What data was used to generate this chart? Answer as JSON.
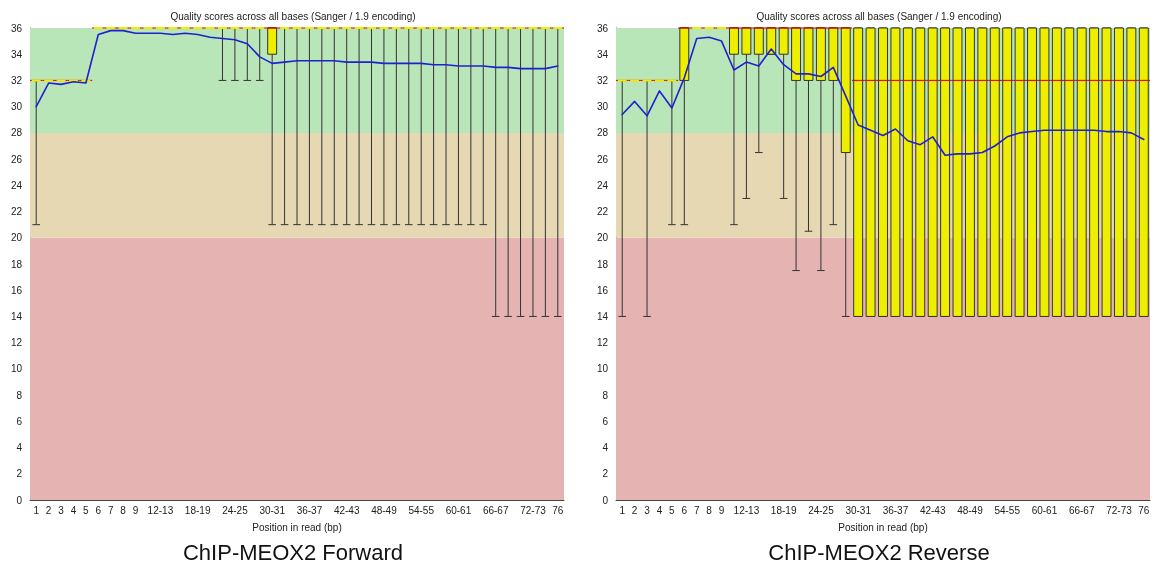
{
  "chart_data": [
    {
      "type": "box",
      "title": "Quality scores across all bases (Sanger / 1.9 encoding)",
      "xlabel": "Position in read (bp)",
      "annotations": [
        "ChIP-MEOX2 Forward"
      ],
      "categories": [
        "1",
        "2",
        "3",
        "4",
        "5",
        "6",
        "7",
        "8",
        "9",
        null,
        "12-13",
        null,
        null,
        "18-19",
        null,
        null,
        "24-25",
        null,
        null,
        "30-31",
        null,
        null,
        "36-37",
        null,
        null,
        "42-43",
        null,
        null,
        "48-49",
        null,
        null,
        "54-55",
        null,
        null,
        "60-61",
        null,
        null,
        "66-67",
        null,
        null,
        "72-73",
        null,
        "76"
      ],
      "ylim": [
        0,
        36
      ],
      "yticks": [
        0,
        2,
        4,
        6,
        8,
        10,
        12,
        14,
        16,
        18,
        20,
        22,
        24,
        26,
        28,
        30,
        32,
        34,
        36
      ],
      "grid": false,
      "bands": [
        {
          "axis": "y",
          "from": 0,
          "to": 20,
          "color": "#e6b3b3"
        },
        {
          "axis": "y",
          "from": 20,
          "to": 28,
          "color": "#e6d8b3"
        },
        {
          "axis": "y",
          "from": 28,
          "to": 36,
          "color": "#b8e6b8"
        }
      ],
      "series": [
        {
          "type": "box",
          "color": "#eeee00",
          "boxes": [
            {
              "low": 21,
              "q1": 32,
              "median": 32,
              "q3": 32,
              "high": 32
            },
            {
              "low": 32,
              "q1": 32,
              "median": 32,
              "q3": 32,
              "high": 32
            },
            {
              "low": 32,
              "q1": 32,
              "median": 32,
              "q3": 32,
              "high": 32
            },
            {
              "low": 32,
              "q1": 32,
              "median": 32,
              "q3": 32,
              "high": 32
            },
            {
              "low": 32,
              "q1": 32,
              "median": 32,
              "q3": 32,
              "high": 32
            },
            {
              "low": 36,
              "q1": 36,
              "median": 36,
              "q3": 36,
              "high": 36
            },
            {
              "low": 36,
              "q1": 36,
              "median": 36,
              "q3": 36,
              "high": 36
            },
            {
              "low": 36,
              "q1": 36,
              "median": 36,
              "q3": 36,
              "high": 36
            },
            {
              "low": 36,
              "q1": 36,
              "median": 36,
              "q3": 36,
              "high": 36
            },
            {
              "low": 36,
              "q1": 36,
              "median": 36,
              "q3": 36,
              "high": 36
            },
            {
              "low": 36,
              "q1": 36,
              "median": 36,
              "q3": 36,
              "high": 36
            },
            {
              "low": 36,
              "q1": 36,
              "median": 36,
              "q3": 36,
              "high": 36
            },
            {
              "low": 36,
              "q1": 36,
              "median": 36,
              "q3": 36,
              "high": 36
            },
            {
              "low": 36,
              "q1": 36,
              "median": 36,
              "q3": 36,
              "high": 36
            },
            {
              "low": 36,
              "q1": 36,
              "median": 36,
              "q3": 36,
              "high": 36
            },
            {
              "low": 32,
              "q1": 36,
              "median": 36,
              "q3": 36,
              "high": 36
            },
            {
              "low": 32,
              "q1": 36,
              "median": 36,
              "q3": 36,
              "high": 36
            },
            {
              "low": 32,
              "q1": 36,
              "median": 36,
              "q3": 36,
              "high": 36
            },
            {
              "low": 32,
              "q1": 36,
              "median": 36,
              "q3": 36,
              "high": 36
            },
            {
              "low": 21,
              "q1": 34,
              "median": 36,
              "q3": 36,
              "high": 36
            },
            {
              "low": 21,
              "q1": 36,
              "median": 36,
              "q3": 36,
              "high": 36
            },
            {
              "low": 21,
              "q1": 36,
              "median": 36,
              "q3": 36,
              "high": 36
            },
            {
              "low": 21,
              "q1": 36,
              "median": 36,
              "q3": 36,
              "high": 36
            },
            {
              "low": 21,
              "q1": 36,
              "median": 36,
              "q3": 36,
              "high": 36
            },
            {
              "low": 21,
              "q1": 36,
              "median": 36,
              "q3": 36,
              "high": 36
            },
            {
              "low": 21,
              "q1": 36,
              "median": 36,
              "q3": 36,
              "high": 36
            },
            {
              "low": 21,
              "q1": 36,
              "median": 36,
              "q3": 36,
              "high": 36
            },
            {
              "low": 21,
              "q1": 36,
              "median": 36,
              "q3": 36,
              "high": 36
            },
            {
              "low": 21,
              "q1": 36,
              "median": 36,
              "q3": 36,
              "high": 36
            },
            {
              "low": 21,
              "q1": 36,
              "median": 36,
              "q3": 36,
              "high": 36
            },
            {
              "low": 21,
              "q1": 36,
              "median": 36,
              "q3": 36,
              "high": 36
            },
            {
              "low": 21,
              "q1": 36,
              "median": 36,
              "q3": 36,
              "high": 36
            },
            {
              "low": 21,
              "q1": 36,
              "median": 36,
              "q3": 36,
              "high": 36
            },
            {
              "low": 21,
              "q1": 36,
              "median": 36,
              "q3": 36,
              "high": 36
            },
            {
              "low": 21,
              "q1": 36,
              "median": 36,
              "q3": 36,
              "high": 36
            },
            {
              "low": 21,
              "q1": 36,
              "median": 36,
              "q3": 36,
              "high": 36
            },
            {
              "low": 21,
              "q1": 36,
              "median": 36,
              "q3": 36,
              "high": 36
            },
            {
              "low": 14,
              "q1": 36,
              "median": 36,
              "q3": 36,
              "high": 36
            },
            {
              "low": 14,
              "q1": 36,
              "median": 36,
              "q3": 36,
              "high": 36
            },
            {
              "low": 14,
              "q1": 36,
              "median": 36,
              "q3": 36,
              "high": 36
            },
            {
              "low": 14,
              "q1": 36,
              "median": 36,
              "q3": 36,
              "high": 36
            },
            {
              "low": 14,
              "q1": 36,
              "median": 36,
              "q3": 36,
              "high": 36
            },
            {
              "low": 14,
              "q1": 36,
              "median": 36,
              "q3": 36,
              "high": 36
            }
          ]
        },
        {
          "type": "line",
          "color": "#2020d0",
          "marker": "none",
          "line_style": "solid",
          "values": [
            30.0,
            31.8,
            31.7,
            31.9,
            31.8,
            35.5,
            35.8,
            35.8,
            35.6,
            35.6,
            35.6,
            35.5,
            35.6,
            35.5,
            35.3,
            35.2,
            35.1,
            34.8,
            33.8,
            33.3,
            33.4,
            33.5,
            33.5,
            33.5,
            33.5,
            33.4,
            33.4,
            33.4,
            33.3,
            33.3,
            33.3,
            33.3,
            33.2,
            33.2,
            33.1,
            33.1,
            33.1,
            33.0,
            33.0,
            32.9,
            32.9,
            32.9,
            33.1
          ]
        }
      ]
    },
    {
      "type": "box",
      "title": "Quality scores across all bases (Sanger / 1.9 encoding)",
      "xlabel": "Position in read (bp)",
      "annotations": [
        "ChIP-MEOX2 Reverse"
      ],
      "categories": [
        "1",
        "2",
        "3",
        "4",
        "5",
        "6",
        "7",
        "8",
        "9",
        null,
        "12-13",
        null,
        null,
        "18-19",
        null,
        null,
        "24-25",
        null,
        null,
        "30-31",
        null,
        null,
        "36-37",
        null,
        null,
        "42-43",
        null,
        null,
        "48-49",
        null,
        null,
        "54-55",
        null,
        null,
        "60-61",
        null,
        null,
        "66-67",
        null,
        null,
        "72-73",
        null,
        "76"
      ],
      "ylim": [
        0,
        36
      ],
      "yticks": [
        0,
        2,
        4,
        6,
        8,
        10,
        12,
        14,
        16,
        18,
        20,
        22,
        24,
        26,
        28,
        30,
        32,
        34,
        36
      ],
      "grid": false,
      "bands": [
        {
          "axis": "y",
          "from": 0,
          "to": 20,
          "color": "#e6b3b3"
        },
        {
          "axis": "y",
          "from": 20,
          "to": 28,
          "color": "#e6d8b3"
        },
        {
          "axis": "y",
          "from": 28,
          "to": 36,
          "color": "#b8e6b8"
        }
      ],
      "series": [
        {
          "type": "box",
          "color": "#eeee00",
          "boxes": [
            {
              "low": 14,
              "q1": 32,
              "median": 32,
              "q3": 32,
              "high": 32
            },
            {
              "low": 32,
              "q1": 32,
              "median": 32,
              "q3": 32,
              "high": 32
            },
            {
              "low": 14,
              "q1": 32,
              "median": 32,
              "q3": 32,
              "high": 32
            },
            {
              "low": 32,
              "q1": 32,
              "median": 32,
              "q3": 32,
              "high": 32
            },
            {
              "low": 21,
              "q1": 32,
              "median": 32,
              "q3": 32,
              "high": 32
            },
            {
              "low": 21,
              "q1": 32,
              "median": 36,
              "q3": 36,
              "high": 36
            },
            {
              "low": 36,
              "q1": 36,
              "median": 36,
              "q3": 36,
              "high": 36
            },
            {
              "low": 36,
              "q1": 36,
              "median": 36,
              "q3": 36,
              "high": 36
            },
            {
              "low": 36,
              "q1": 36,
              "median": 36,
              "q3": 36,
              "high": 36
            },
            {
              "low": 21,
              "q1": 34,
              "median": 36,
              "q3": 36,
              "high": 36
            },
            {
              "low": 23,
              "q1": 34,
              "median": 36,
              "q3": 36,
              "high": 36
            },
            {
              "low": 26.5,
              "q1": 34,
              "median": 36,
              "q3": 36,
              "high": 36
            },
            {
              "low": 34,
              "q1": 34,
              "median": 36,
              "q3": 36,
              "high": 36
            },
            {
              "low": 23,
              "q1": 34,
              "median": 36,
              "q3": 36,
              "high": 36
            },
            {
              "low": 17.5,
              "q1": 32,
              "median": 36,
              "q3": 36,
              "high": 36
            },
            {
              "low": 20.5,
              "q1": 32,
              "median": 36,
              "q3": 36,
              "high": 36
            },
            {
              "low": 17.5,
              "q1": 32,
              "median": 36,
              "q3": 36,
              "high": 36
            },
            {
              "low": 21,
              "q1": 32,
              "median": 36,
              "q3": 36,
              "high": 36
            },
            {
              "low": 14,
              "q1": 26.5,
              "median": 36,
              "q3": 36,
              "high": 36
            },
            {
              "low": 14,
              "q1": 14,
              "median": 32,
              "q3": 36,
              "high": 36
            },
            {
              "low": 14,
              "q1": 14,
              "median": 32,
              "q3": 36,
              "high": 36
            },
            {
              "low": 14,
              "q1": 14,
              "median": 32,
              "q3": 36,
              "high": 36
            },
            {
              "low": 14,
              "q1": 14,
              "median": 32,
              "q3": 36,
              "high": 36
            },
            {
              "low": 14,
              "q1": 14,
              "median": 32,
              "q3": 36,
              "high": 36
            },
            {
              "low": 14,
              "q1": 14,
              "median": 32,
              "q3": 36,
              "high": 36
            },
            {
              "low": 14,
              "q1": 14,
              "median": 32,
              "q3": 36,
              "high": 36
            },
            {
              "low": 14,
              "q1": 14,
              "median": 32,
              "q3": 36,
              "high": 36
            },
            {
              "low": 14,
              "q1": 14,
              "median": 32,
              "q3": 36,
              "high": 36
            },
            {
              "low": 14,
              "q1": 14,
              "median": 32,
              "q3": 36,
              "high": 36
            },
            {
              "low": 14,
              "q1": 14,
              "median": 32,
              "q3": 36,
              "high": 36
            },
            {
              "low": 14,
              "q1": 14,
              "median": 32,
              "q3": 36,
              "high": 36
            },
            {
              "low": 14,
              "q1": 14,
              "median": 32,
              "q3": 36,
              "high": 36
            },
            {
              "low": 14,
              "q1": 14,
              "median": 32,
              "q3": 36,
              "high": 36
            },
            {
              "low": 14,
              "q1": 14,
              "median": 32,
              "q3": 36,
              "high": 36
            },
            {
              "low": 14,
              "q1": 14,
              "median": 32,
              "q3": 36,
              "high": 36
            },
            {
              "low": 14,
              "q1": 14,
              "median": 32,
              "q3": 36,
              "high": 36
            },
            {
              "low": 14,
              "q1": 14,
              "median": 32,
              "q3": 36,
              "high": 36
            },
            {
              "low": 14,
              "q1": 14,
              "median": 32,
              "q3": 36,
              "high": 36
            },
            {
              "low": 14,
              "q1": 14,
              "median": 32,
              "q3": 36,
              "high": 36
            },
            {
              "low": 14,
              "q1": 14,
              "median": 32,
              "q3": 36,
              "high": 36
            },
            {
              "low": 14,
              "q1": 14,
              "median": 32,
              "q3": 36,
              "high": 36
            },
            {
              "low": 14,
              "q1": 14,
              "median": 32,
              "q3": 36,
              "high": 36
            },
            {
              "low": 14,
              "q1": 14,
              "median": 32,
              "q3": 36,
              "high": 36
            }
          ]
        },
        {
          "type": "line",
          "color": "#2020d0",
          "marker": "none",
          "line_style": "solid",
          "values": [
            29.4,
            30.4,
            29.3,
            31.2,
            29.9,
            32.2,
            35.2,
            35.3,
            35.0,
            32.8,
            33.4,
            33.1,
            34.4,
            33.2,
            32.5,
            32.5,
            32.3,
            33.0,
            30.8,
            28.6,
            28.2,
            27.8,
            28.3,
            27.4,
            27.1,
            27.7,
            26.3,
            26.4,
            26.4,
            26.5,
            27.0,
            27.7,
            28.0,
            28.1,
            28.2,
            28.2,
            28.2,
            28.2,
            28.2,
            28.1,
            28.1,
            28.0,
            27.5
          ]
        }
      ]
    }
  ]
}
